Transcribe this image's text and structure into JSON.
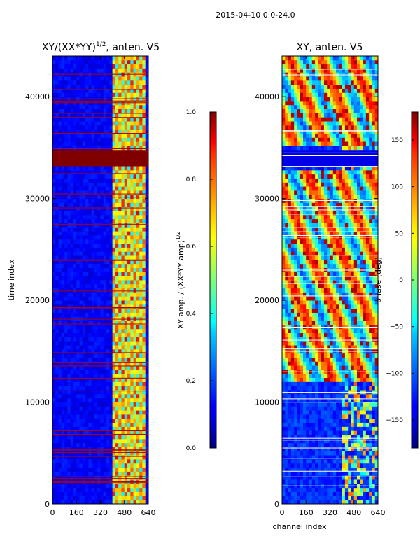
{
  "suptitle": "2015-04-10 0.0-24.0",
  "chart_data": [
    {
      "type": "heatmap",
      "title": "XY/(XX*YY)^1/2, anten. V5",
      "title_main": "XY/(XX*YY)",
      "title_exp": "1/2",
      "title_tail": ", anten. V5",
      "xlabel": "",
      "ylabel": "time index",
      "xlim": [
        0,
        640
      ],
      "ylim": [
        0,
        44000
      ],
      "xticks": [
        "0",
        "160",
        "320",
        "480",
        "640"
      ],
      "yticks": [
        "0",
        "10000",
        "20000",
        "30000",
        "40000"
      ],
      "colorbar": {
        "label": "XY amp. / (XX*YY amp)^1/2",
        "label_main": "XY amp. / (XX*YY amp)",
        "label_exp": "1/2",
        "range": [
          0.0,
          1.0
        ],
        "ticks": [
          "0.0",
          "0.2",
          "0.4",
          "0.6",
          "0.8",
          "1.0"
        ]
      },
      "colormap": "jet"
    },
    {
      "type": "heatmap",
      "title": "XY, anten. V5",
      "xlabel": "channel index",
      "ylabel": "",
      "xlim": [
        0,
        640
      ],
      "ylim": [
        0,
        44000
      ],
      "xticks": [
        "0",
        "160",
        "320",
        "480",
        "640"
      ],
      "yticks": [
        "0",
        "10000",
        "20000",
        "30000",
        "40000"
      ],
      "colorbar": {
        "label": "phase (deg)",
        "range": [
          -180,
          180
        ],
        "ticks": [
          "−150",
          "−100",
          "−50",
          "0",
          "50",
          "100",
          "150"
        ]
      },
      "colormap": "jet"
    }
  ]
}
